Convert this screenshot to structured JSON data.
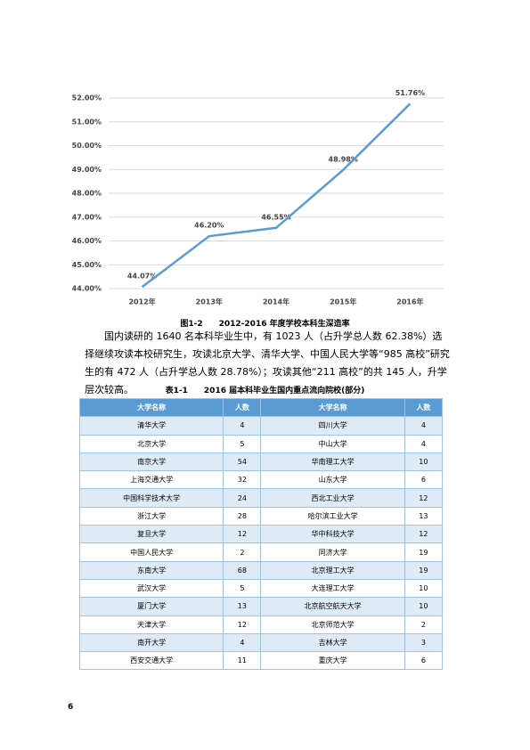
{
  "chart_data": {
    "type": "line",
    "categories": [
      "2012年",
      "2013年",
      "2014年",
      "2015年",
      "2016年"
    ],
    "series": [
      {
        "color": "#5b9bd5",
        "values": [
          44.07,
          46.2,
          46.55,
          48.98,
          51.76
        ],
        "value_labels": [
          "44.07%",
          "46.20%",
          "46.55%",
          "48.98%",
          "51.76%"
        ]
      }
    ],
    "ylim": [
      44,
      52
    ],
    "yticks": [
      {
        "value": 44,
        "label": "44.00%"
      },
      {
        "value": 45,
        "label": "45.00%"
      },
      {
        "value": 46,
        "label": "46.00%"
      },
      {
        "value": 47,
        "label": "47.00%"
      },
      {
        "value": 48,
        "label": "48.00%"
      },
      {
        "value": 49,
        "label": "49.00%"
      },
      {
        "value": 50,
        "label": "50.00%"
      },
      {
        "value": 51,
        "label": "51.00%"
      },
      {
        "value": 52,
        "label": "52.00%"
      }
    ],
    "grid": true
  },
  "figure_caption": "图1-2　　2012-2016 年度学校本科生深造率",
  "paragraph": "国内读研的 1640 名本科毕业生中，有 1023 人（占升学总人数 62.38%）选择继续攻读本校研究生，攻读北京大学、清华大学、中国人民大学等“985 高校”研究生的有 472 人（占升学总人数 28.78%）；攻读其他“211 高校”的共 145 人，升学层次较高。",
  "table_caption": "表1-1　　2016 届本科毕业生国内重点流向院校(部分)",
  "table": {
    "header": [
      "大学名称",
      "人数",
      "大学名称",
      "人数"
    ],
    "rows": [
      [
        "清华大学",
        "4",
        "四川大学",
        "4"
      ],
      [
        "北京大学",
        "5",
        "中山大学",
        "4"
      ],
      [
        "南京大学",
        "54",
        "华南理工大学",
        "10"
      ],
      [
        "上海交通大学",
        "32",
        "山东大学",
        "6"
      ],
      [
        "中国科学技术大学",
        "24",
        "西北工业大学",
        "12"
      ],
      [
        "浙江大学",
        "28",
        "哈尔滨工业大学",
        "13"
      ],
      [
        "复旦大学",
        "12",
        "华中科技大学",
        "12"
      ],
      [
        "中国人民大学",
        "2",
        "同济大学",
        "19"
      ],
      [
        "东南大学",
        "68",
        "北京理工大学",
        "19"
      ],
      [
        "武汉大学",
        "5",
        "大连理工大学",
        "10"
      ],
      [
        "厦门大学",
        "13",
        "北京航空航天大学",
        "10"
      ],
      [
        "天津大学",
        "12",
        "北京师范大学",
        "2"
      ],
      [
        "南开大学",
        "4",
        "吉林大学",
        "3"
      ],
      [
        "西安交通大学",
        "11",
        "重庆大学",
        "6"
      ]
    ]
  },
  "page_number": "6"
}
